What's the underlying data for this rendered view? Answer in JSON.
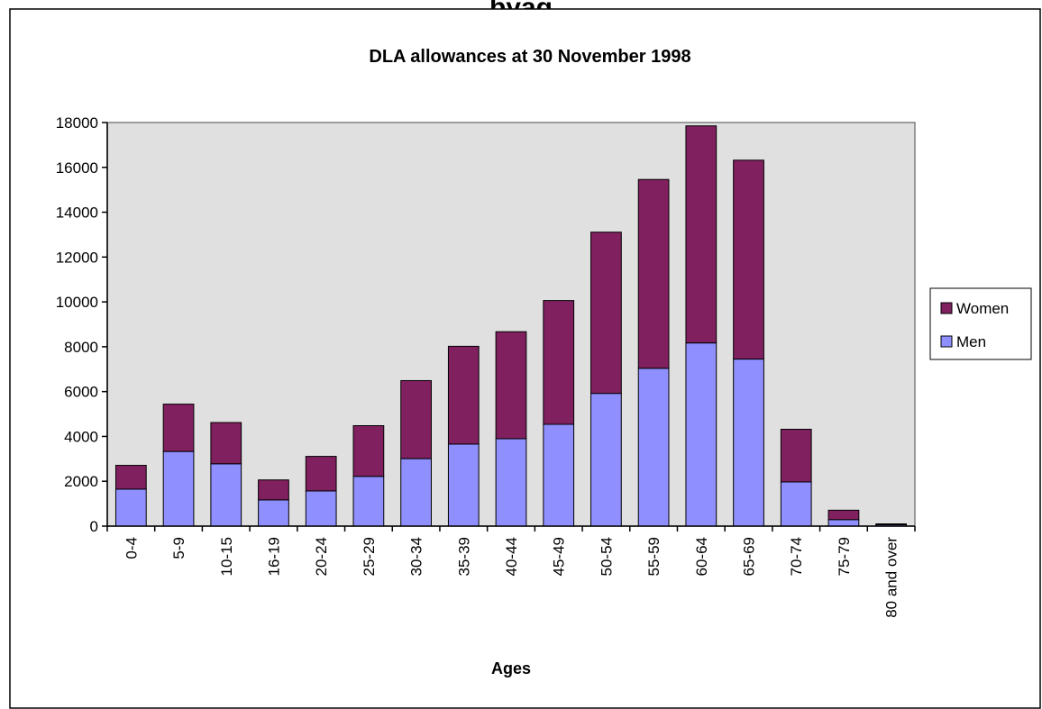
{
  "top_fragment": "byag",
  "chart_data": {
    "type": "bar",
    "stacked": true,
    "title": "DLA allowances at 30 November 1998",
    "xlabel": "Ages",
    "ylabel": "",
    "ylim": [
      0,
      18000
    ],
    "yticks": [
      0,
      2000,
      4000,
      6000,
      8000,
      10000,
      12000,
      14000,
      16000,
      18000
    ],
    "categories": [
      "0-4",
      "5-9",
      "10-15",
      "16-19",
      "20-24",
      "25-29",
      "30-34",
      "35-39",
      "40-44",
      "45-49",
      "50-54",
      "55-59",
      "60-64",
      "65-69",
      "70-74",
      "75-79",
      "80 and over"
    ],
    "series": [
      {
        "name": "Men",
        "color": "#8f8fff",
        "values": [
          1650,
          3330,
          2780,
          1170,
          1570,
          2220,
          3010,
          3660,
          3900,
          4540,
          5920,
          7040,
          8170,
          7450,
          1970,
          290,
          60
        ]
      },
      {
        "name": "Women",
        "color": "#80205f",
        "values": [
          1060,
          2110,
          1840,
          890,
          1540,
          2260,
          3480,
          4360,
          4770,
          5520,
          7190,
          8420,
          9680,
          8870,
          2350,
          420,
          40
        ]
      }
    ],
    "legend": {
      "position": "right",
      "order": [
        "Women",
        "Men"
      ]
    },
    "grid": false,
    "plot_background": "#e0e0e0"
  }
}
